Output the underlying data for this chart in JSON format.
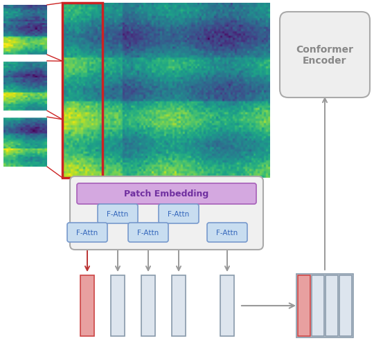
{
  "patch_embedding_color": "#d4a8e0",
  "patch_embedding_text": "Patch Embedding",
  "patch_embedding_border": "#aa66bb",
  "fattn_color": "#c8ddf0",
  "fattn_border_color": "#7799cc",
  "fattn_text": "F-Attn",
  "outer_box_color": "#f0f0f0",
  "outer_box_border": "#aaaaaa",
  "conformer_box_color": "#eeeeee",
  "conformer_border_color": "#aaaaaa",
  "conformer_text": "Conformer\nEncoder",
  "red_col_color": "#e8a0a0",
  "red_col_border": "#cc4444",
  "gray_col_color": "#dde5ee",
  "gray_col_border": "#8899aa",
  "red_arrow_color": "#bb3333",
  "gray_arrow_color": "#999999",
  "red_rect_color": "#cc2222",
  "background_color": "#ffffff",
  "spec_seed": 1234
}
